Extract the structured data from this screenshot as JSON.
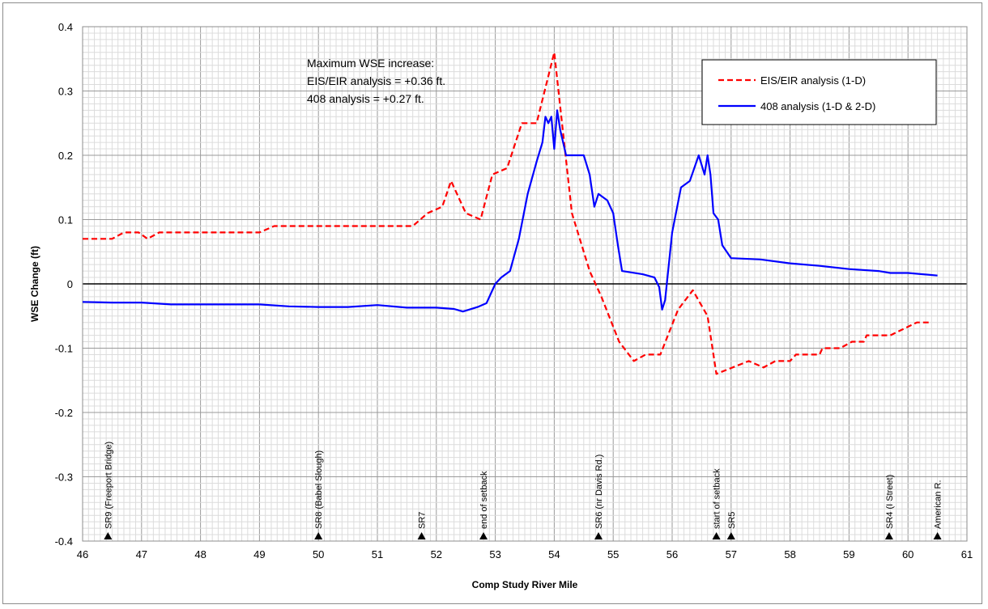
{
  "chart_data": {
    "type": "line",
    "title": "",
    "xlabel": "Comp Study River Mile",
    "ylabel": "WSE Change (ft)",
    "xlim": [
      46,
      61
    ],
    "ylim": [
      -0.4,
      0.4
    ],
    "x_ticks": [
      "46",
      "47",
      "48",
      "49",
      "50",
      "51",
      "52",
      "53",
      "54",
      "55",
      "56",
      "57",
      "58",
      "59",
      "60",
      "61"
    ],
    "y_ticks": [
      "0.4",
      "0.3",
      "0.2",
      "0.1",
      "0",
      "-0.1",
      "-0.2",
      "-0.3",
      "-0.4"
    ],
    "grid": true,
    "legend_position": "top-right",
    "annotation": [
      "Maximum WSE increase:",
      "EIS/EIR analysis = +0.36 ft.",
      "408 analysis  = +0.27 ft."
    ],
    "series": [
      {
        "name": "EIS/EIR analysis (1-D)",
        "color": "#ff0000",
        "dash": "dashed",
        "points": [
          [
            46.0,
            0.07
          ],
          [
            46.5,
            0.07
          ],
          [
            46.7,
            0.08
          ],
          [
            46.95,
            0.08
          ],
          [
            47.1,
            0.07
          ],
          [
            47.3,
            0.08
          ],
          [
            49.0,
            0.08
          ],
          [
            49.25,
            0.09
          ],
          [
            51.6,
            0.09
          ],
          [
            51.85,
            0.11
          ],
          [
            52.1,
            0.12
          ],
          [
            52.25,
            0.16
          ],
          [
            52.5,
            0.11
          ],
          [
            52.75,
            0.1
          ],
          [
            52.95,
            0.17
          ],
          [
            53.2,
            0.18
          ],
          [
            53.45,
            0.25
          ],
          [
            53.7,
            0.25
          ],
          [
            54.0,
            0.36
          ],
          [
            54.3,
            0.11
          ],
          [
            54.6,
            0.02
          ],
          [
            54.8,
            -0.02
          ],
          [
            55.1,
            -0.09
          ],
          [
            55.35,
            -0.12
          ],
          [
            55.55,
            -0.11
          ],
          [
            55.8,
            -0.11
          ],
          [
            56.1,
            -0.04
          ],
          [
            56.35,
            -0.01
          ],
          [
            56.6,
            -0.05
          ],
          [
            56.75,
            -0.14
          ],
          [
            57.3,
            -0.12
          ],
          [
            57.55,
            -0.13
          ],
          [
            57.75,
            -0.12
          ],
          [
            58.0,
            -0.12
          ],
          [
            58.1,
            -0.11
          ],
          [
            58.5,
            -0.11
          ],
          [
            58.55,
            -0.1
          ],
          [
            58.85,
            -0.1
          ],
          [
            59.05,
            -0.09
          ],
          [
            59.25,
            -0.09
          ],
          [
            59.3,
            -0.08
          ],
          [
            59.7,
            -0.08
          ],
          [
            60.15,
            -0.06
          ],
          [
            60.35,
            -0.06
          ]
        ]
      },
      {
        "name": "408 analysis (1-D & 2-D)",
        "color": "#0000ff",
        "dash": "solid",
        "points": [
          [
            46.0,
            -0.028
          ],
          [
            46.5,
            -0.029
          ],
          [
            47.0,
            -0.029
          ],
          [
            47.5,
            -0.032
          ],
          [
            48.5,
            -0.032
          ],
          [
            49.0,
            -0.032
          ],
          [
            49.5,
            -0.035
          ],
          [
            50.0,
            -0.036
          ],
          [
            50.5,
            -0.036
          ],
          [
            51.0,
            -0.033
          ],
          [
            51.5,
            -0.037
          ],
          [
            52.0,
            -0.037
          ],
          [
            52.3,
            -0.039
          ],
          [
            52.45,
            -0.043
          ],
          [
            52.7,
            -0.036
          ],
          [
            52.85,
            -0.03
          ],
          [
            53.0,
            0.0
          ],
          [
            53.1,
            0.01
          ],
          [
            53.25,
            0.02
          ],
          [
            53.4,
            0.07
          ],
          [
            53.55,
            0.14
          ],
          [
            53.7,
            0.19
          ],
          [
            53.8,
            0.22
          ],
          [
            53.85,
            0.26
          ],
          [
            53.9,
            0.25
          ],
          [
            53.95,
            0.26
          ],
          [
            54.0,
            0.21
          ],
          [
            54.05,
            0.27
          ],
          [
            54.1,
            0.24
          ],
          [
            54.2,
            0.2
          ],
          [
            54.5,
            0.2
          ],
          [
            54.6,
            0.17
          ],
          [
            54.68,
            0.12
          ],
          [
            54.75,
            0.14
          ],
          [
            54.9,
            0.13
          ],
          [
            55.0,
            0.11
          ],
          [
            55.08,
            0.06
          ],
          [
            55.15,
            0.02
          ],
          [
            55.5,
            0.015
          ],
          [
            55.7,
            0.01
          ],
          [
            55.78,
            -0.005
          ],
          [
            55.83,
            -0.04
          ],
          [
            55.88,
            -0.025
          ],
          [
            56.0,
            0.08
          ],
          [
            56.15,
            0.15
          ],
          [
            56.3,
            0.16
          ],
          [
            56.45,
            0.2
          ],
          [
            56.55,
            0.17
          ],
          [
            56.6,
            0.2
          ],
          [
            56.65,
            0.17
          ],
          [
            56.7,
            0.11
          ],
          [
            56.78,
            0.1
          ],
          [
            56.85,
            0.06
          ],
          [
            57.0,
            0.04
          ],
          [
            57.5,
            0.038
          ],
          [
            58.0,
            0.032
          ],
          [
            58.5,
            0.028
          ],
          [
            59.0,
            0.023
          ],
          [
            59.5,
            0.02
          ],
          [
            59.7,
            0.017
          ],
          [
            60.0,
            0.017
          ],
          [
            60.5,
            0.013
          ]
        ]
      }
    ],
    "location_markers": [
      {
        "x": 46.43,
        "label": "SR9 (Freeport Bridge)"
      },
      {
        "x": 50.0,
        "label": "SR8 (Babel Slough)"
      },
      {
        "x": 51.75,
        "label": "SR7"
      },
      {
        "x": 52.8,
        "label": "end of setback"
      },
      {
        "x": 54.75,
        "label": "SR6 (nr Davis Rd.)"
      },
      {
        "x": 56.75,
        "label": "start of setback"
      },
      {
        "x": 57.0,
        "label": "SR5"
      },
      {
        "x": 59.68,
        "label": "SR4 (I Street)"
      },
      {
        "x": 60.5,
        "label": "American R."
      }
    ]
  }
}
